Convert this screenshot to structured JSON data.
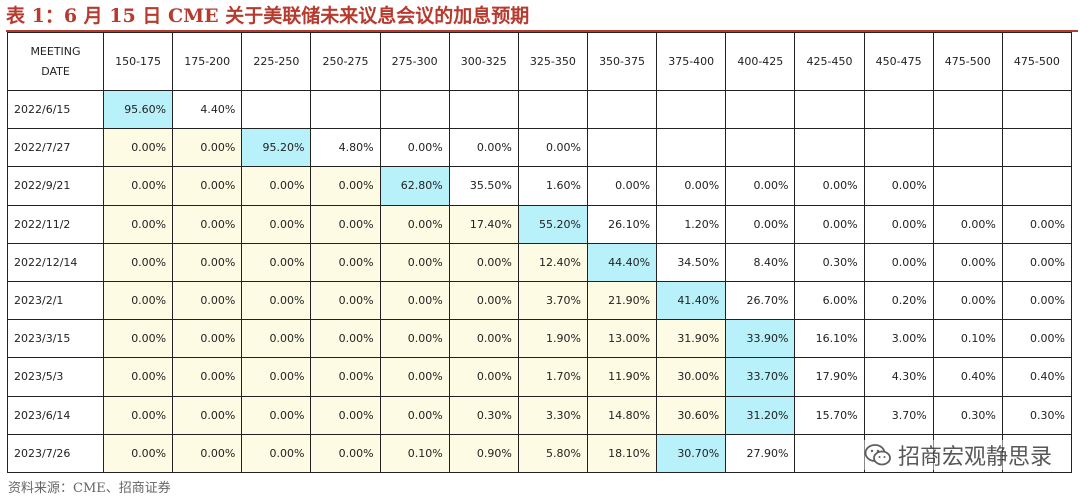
{
  "title": "表 1：6 月 15 日 CME 关于美联储未来议息会议的加息预期",
  "source": "资料来源：CME、招商证券",
  "watermark": "招商宏观静思录",
  "chart_data": {
    "type": "table",
    "title": "表 1：6 月 15 日 CME 关于美联储未来议息会议的加息预期",
    "date_header": [
      "MEETING",
      "DATE"
    ],
    "columns": [
      "150-175",
      "175-200",
      "225-250",
      "250-275",
      "275-300",
      "300-325",
      "325-350",
      "350-375",
      "375-400",
      "400-425",
      "425-450",
      "450-475",
      "475-500",
      "475-500"
    ],
    "rows": [
      {
        "date": "2022/6/15",
        "values": [
          "95.60%",
          "4.40%",
          "",
          "",
          "",
          "",
          "",
          "",
          "",
          "",
          "",
          "",
          "",
          ""
        ]
      },
      {
        "date": "2022/7/27",
        "values": [
          "0.00%",
          "0.00%",
          "95.20%",
          "4.80%",
          "0.00%",
          "0.00%",
          "0.00%",
          "",
          "",
          "",
          "",
          "",
          "",
          ""
        ]
      },
      {
        "date": "2022/9/21",
        "values": [
          "0.00%",
          "0.00%",
          "0.00%",
          "0.00%",
          "62.80%",
          "35.50%",
          "1.60%",
          "0.00%",
          "0.00%",
          "0.00%",
          "0.00%",
          "0.00%",
          "",
          ""
        ]
      },
      {
        "date": "2022/11/2",
        "values": [
          "0.00%",
          "0.00%",
          "0.00%",
          "0.00%",
          "0.00%",
          "17.40%",
          "55.20%",
          "26.10%",
          "1.20%",
          "0.00%",
          "0.00%",
          "0.00%",
          "0.00%",
          "0.00%"
        ]
      },
      {
        "date": "2022/12/14",
        "values": [
          "0.00%",
          "0.00%",
          "0.00%",
          "0.00%",
          "0.00%",
          "0.00%",
          "12.40%",
          "44.40%",
          "34.50%",
          "8.40%",
          "0.30%",
          "0.00%",
          "0.00%",
          "0.00%"
        ]
      },
      {
        "date": "2023/2/1",
        "values": [
          "0.00%",
          "0.00%",
          "0.00%",
          "0.00%",
          "0.00%",
          "0.00%",
          "3.70%",
          "21.90%",
          "41.40%",
          "26.70%",
          "6.00%",
          "0.20%",
          "0.00%",
          "0.00%"
        ]
      },
      {
        "date": "2023/3/15",
        "values": [
          "0.00%",
          "0.00%",
          "0.00%",
          "0.00%",
          "0.00%",
          "0.00%",
          "1.90%",
          "13.00%",
          "31.90%",
          "33.90%",
          "16.10%",
          "3.00%",
          "0.10%",
          "0.00%"
        ]
      },
      {
        "date": "2023/5/3",
        "values": [
          "0.00%",
          "0.00%",
          "0.00%",
          "0.00%",
          "0.00%",
          "0.00%",
          "1.70%",
          "11.90%",
          "30.00%",
          "33.70%",
          "17.90%",
          "4.30%",
          "0.40%",
          "0.40%"
        ]
      },
      {
        "date": "2023/6/14",
        "values": [
          "0.00%",
          "0.00%",
          "0.00%",
          "0.00%",
          "0.00%",
          "0.30%",
          "3.30%",
          "14.80%",
          "30.60%",
          "31.20%",
          "15.70%",
          "3.70%",
          "0.30%",
          "0.30%"
        ]
      },
      {
        "date": "2023/7/26",
        "values": [
          "0.00%",
          "0.00%",
          "0.00%",
          "0.00%",
          "0.10%",
          "0.90%",
          "5.80%",
          "18.10%",
          "30.70%",
          "27.90%",
          "",
          "",
          "",
          ""
        ]
      }
    ],
    "highlight_cols": [
      0,
      2,
      4,
      6,
      7,
      8,
      9,
      9,
      9,
      8
    ],
    "colors": {
      "highlight": "#b9f1fb",
      "shaded": "#fdfbe3",
      "title": "#b73a2e"
    }
  }
}
